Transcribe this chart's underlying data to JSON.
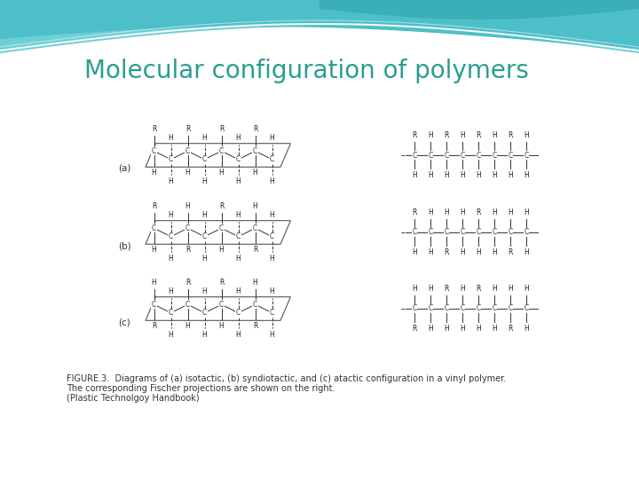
{
  "title": "Molecular configuration of polymers",
  "title_color": "#2a9d8f",
  "title_fontsize": 20,
  "background_color": "#ffffff",
  "caption_line1": "FIGURE.3.  Diagrams of (a) isotactic, (b) syndiotactic, and (c) atactic configuration in a vinyl polymer.",
  "caption_line2": "The corresponding Fischer projections are shown on the right.",
  "caption_line3": "(Plastic Technolgoy Handbook)",
  "caption_fontsize": 7.0,
  "isotactic_top": [
    "R",
    "H",
    "R",
    "H",
    "R",
    "H",
    "R",
    "H"
  ],
  "isotactic_bottom": [
    "H",
    "H",
    "H",
    "H",
    "H",
    "H",
    "H",
    "H"
  ],
  "syndiotactic_top": [
    "R",
    "H",
    "H",
    "H",
    "R",
    "H",
    "H",
    "H"
  ],
  "syndiotactic_bottom": [
    "H",
    "H",
    "R",
    "H",
    "H",
    "H",
    "R",
    "H"
  ],
  "atactic_top": [
    "H",
    "H",
    "R",
    "H",
    "R",
    "H",
    "H",
    "H"
  ],
  "atactic_bottom": [
    "R",
    "H",
    "H",
    "H",
    "H",
    "H",
    "R",
    "H"
  ],
  "fischer_isotactic_top": [
    "R",
    "H",
    "R",
    "H",
    "R",
    "H",
    "R",
    "H"
  ],
  "fischer_isotactic_bottom": [
    "H",
    "H",
    "H",
    "H",
    "H",
    "H",
    "H",
    "H"
  ],
  "fischer_syndiotactic_top": [
    "R",
    "H",
    "H",
    "H",
    "R",
    "H",
    "H",
    "H"
  ],
  "fischer_syndiotactic_bottom": [
    "H",
    "H",
    "R",
    "H",
    "H",
    "H",
    "R",
    "H"
  ],
  "fischer_atactic_top": [
    "H",
    "H",
    "R",
    "H",
    "R",
    "H",
    "H",
    "H"
  ],
  "fischer_atactic_bottom": [
    "R",
    "H",
    "H",
    "H",
    "H",
    "H",
    "R",
    "H"
  ],
  "header_teal1": "#6ecfd6",
  "header_teal2": "#4dbfc8",
  "header_teal3": "#3aafb8"
}
